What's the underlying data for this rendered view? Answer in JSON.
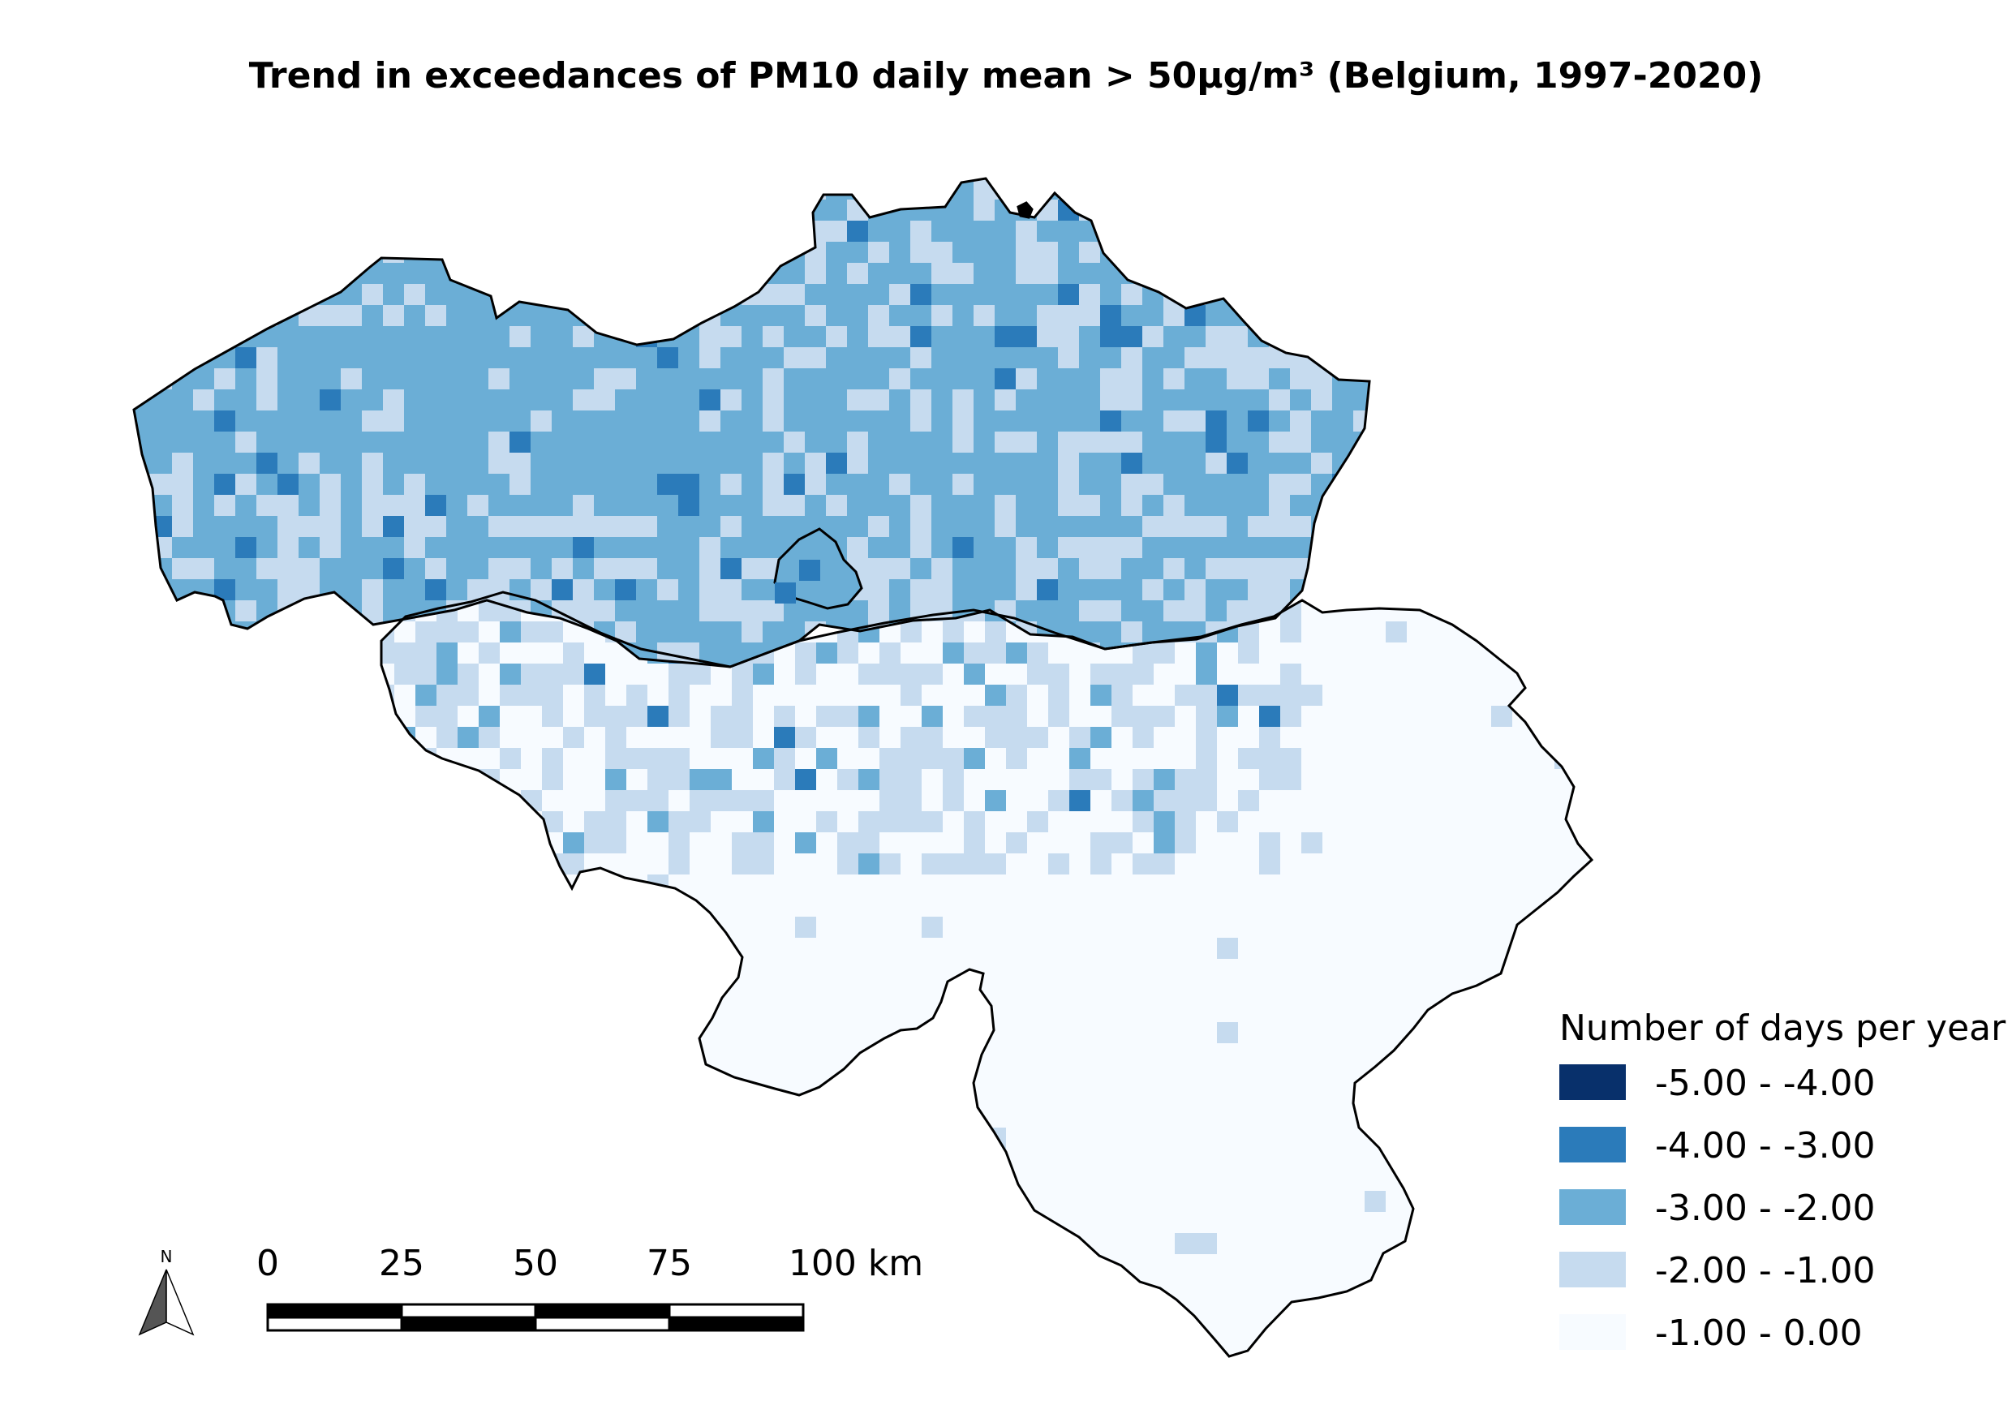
{
  "title": "Trend in exceedances of PM10 daily mean > 50μg/m³ (Belgium, 1997-2020)",
  "legend": {
    "title": "Number of days per year",
    "classes": [
      {
        "label": "-5.00 - -4.00",
        "color": "#08306b"
      },
      {
        "label": "-4.00 - -3.00",
        "color": "#2b7bba"
      },
      {
        "label": "-3.00 - -2.00",
        "color": "#6baed6"
      },
      {
        "label": "-2.00 - -1.00",
        "color": "#c6dbef"
      },
      {
        "label": "-1.00 - 0.00",
        "color": "#f7fbff"
      }
    ]
  },
  "scale_bar": {
    "labels": [
      "0",
      "25",
      "50",
      "75",
      "100 km"
    ]
  },
  "north_arrow": {
    "label": "N"
  },
  "colors": {
    "border": "#000000",
    "background": "#ffffff"
  }
}
